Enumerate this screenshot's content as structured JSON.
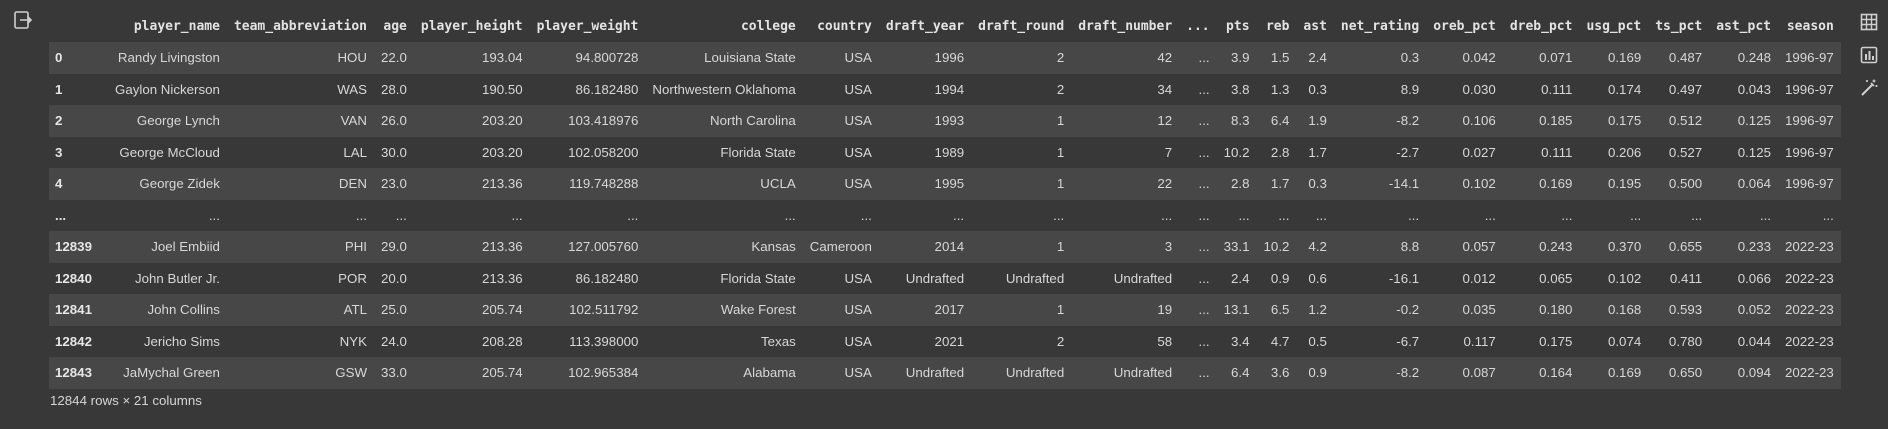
{
  "table": {
    "columns": [
      "",
      "player_name",
      "team_abbreviation",
      "age",
      "player_height",
      "player_weight",
      "college",
      "country",
      "draft_year",
      "draft_round",
      "draft_number",
      "...",
      "pts",
      "reb",
      "ast",
      "net_rating",
      "oreb_pct",
      "dreb_pct",
      "usg_pct",
      "ts_pct",
      "ast_pct",
      "season"
    ],
    "rows": [
      [
        "0",
        "Randy Livingston",
        "HOU",
        "22.0",
        "193.04",
        "94.800728",
        "Louisiana State",
        "USA",
        "1996",
        "2",
        "42",
        "...",
        "3.9",
        "1.5",
        "2.4",
        "0.3",
        "0.042",
        "0.071",
        "0.169",
        "0.487",
        "0.248",
        "1996-97"
      ],
      [
        "1",
        "Gaylon Nickerson",
        "WAS",
        "28.0",
        "190.50",
        "86.182480",
        "Northwestern Oklahoma",
        "USA",
        "1994",
        "2",
        "34",
        "...",
        "3.8",
        "1.3",
        "0.3",
        "8.9",
        "0.030",
        "0.111",
        "0.174",
        "0.497",
        "0.043",
        "1996-97"
      ],
      [
        "2",
        "George Lynch",
        "VAN",
        "26.0",
        "203.20",
        "103.418976",
        "North Carolina",
        "USA",
        "1993",
        "1",
        "12",
        "...",
        "8.3",
        "6.4",
        "1.9",
        "-8.2",
        "0.106",
        "0.185",
        "0.175",
        "0.512",
        "0.125",
        "1996-97"
      ],
      [
        "3",
        "George McCloud",
        "LAL",
        "30.0",
        "203.20",
        "102.058200",
        "Florida State",
        "USA",
        "1989",
        "1",
        "7",
        "...",
        "10.2",
        "2.8",
        "1.7",
        "-2.7",
        "0.027",
        "0.111",
        "0.206",
        "0.527",
        "0.125",
        "1996-97"
      ],
      [
        "4",
        "George Zidek",
        "DEN",
        "23.0",
        "213.36",
        "119.748288",
        "UCLA",
        "USA",
        "1995",
        "1",
        "22",
        "...",
        "2.8",
        "1.7",
        "0.3",
        "-14.1",
        "0.102",
        "0.169",
        "0.195",
        "0.500",
        "0.064",
        "1996-97"
      ],
      [
        "...",
        "...",
        "...",
        "...",
        "...",
        "...",
        "...",
        "...",
        "...",
        "...",
        "...",
        "...",
        "...",
        "...",
        "...",
        "...",
        "...",
        "...",
        "...",
        "...",
        "...",
        "..."
      ],
      [
        "12839",
        "Joel Embiid",
        "PHI",
        "29.0",
        "213.36",
        "127.005760",
        "Kansas",
        "Cameroon",
        "2014",
        "1",
        "3",
        "...",
        "33.1",
        "10.2",
        "4.2",
        "8.8",
        "0.057",
        "0.243",
        "0.370",
        "0.655",
        "0.233",
        "2022-23"
      ],
      [
        "12840",
        "John Butler Jr.",
        "POR",
        "20.0",
        "213.36",
        "86.182480",
        "Florida State",
        "USA",
        "Undrafted",
        "Undrafted",
        "Undrafted",
        "...",
        "2.4",
        "0.9",
        "0.6",
        "-16.1",
        "0.012",
        "0.065",
        "0.102",
        "0.411",
        "0.066",
        "2022-23"
      ],
      [
        "12841",
        "John Collins",
        "ATL",
        "25.0",
        "205.74",
        "102.511792",
        "Wake Forest",
        "USA",
        "2017",
        "1",
        "19",
        "...",
        "13.1",
        "6.5",
        "1.2",
        "-0.2",
        "0.035",
        "0.180",
        "0.168",
        "0.593",
        "0.052",
        "2022-23"
      ],
      [
        "12842",
        "Jericho Sims",
        "NYK",
        "24.0",
        "208.28",
        "113.398000",
        "Texas",
        "USA",
        "2021",
        "2",
        "58",
        "...",
        "3.4",
        "4.7",
        "0.5",
        "-6.7",
        "0.117",
        "0.175",
        "0.074",
        "0.780",
        "0.044",
        "2022-23"
      ],
      [
        "12843",
        "JaMychal Green",
        "GSW",
        "33.0",
        "205.74",
        "102.965384",
        "Alabama",
        "USA",
        "Undrafted",
        "Undrafted",
        "Undrafted",
        "...",
        "6.4",
        "3.6",
        "0.9",
        "-8.2",
        "0.087",
        "0.164",
        "0.169",
        "0.650",
        "0.094",
        "2022-23"
      ]
    ]
  },
  "footer": "12844 rows × 21 columns",
  "icons": {
    "left": "output-toggle-icon",
    "toolbar": [
      "table-view-icon",
      "chart-suggest-icon",
      "magic-wand-icon"
    ]
  },
  "colors": {
    "row_odd": "#474747",
    "row_even": "#383838",
    "background": "#383838"
  }
}
